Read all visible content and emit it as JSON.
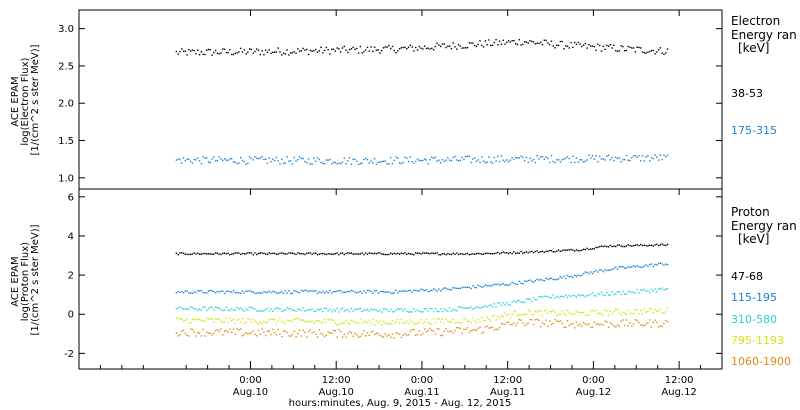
{
  "x_axis": {
    "title": "hours:minutes, Aug.  9, 2015 - Aug. 12, 2015",
    "ticks": [
      {
        "hours": 24,
        "time": "0:00",
        "date": "Aug.10"
      },
      {
        "hours": 36,
        "time": "12:00",
        "date": "Aug.10"
      },
      {
        "hours": 48,
        "time": "0:00",
        "date": "Aug.11"
      },
      {
        "hours": 60,
        "time": "12:00",
        "date": "Aug.11"
      },
      {
        "hours": 72,
        "time": "0:00",
        "date": "Aug.12"
      },
      {
        "hours": 84,
        "time": "12:00",
        "date": "Aug.12"
      }
    ]
  },
  "chart_data": [
    {
      "type": "scatter",
      "id": "electron",
      "ylabel_lines": [
        "ACE EPAM",
        "log(Electron Flux)",
        "[1/(cm^2 s ster MeV)]"
      ],
      "ylim": [
        0.85,
        3.25
      ],
      "yticks": [
        {
          "v": 1.0,
          "label": "1.0"
        },
        {
          "v": 1.5,
          "label": "1.5"
        },
        {
          "v": 2.0,
          "label": "2.0"
        },
        {
          "v": 2.5,
          "label": "2.5"
        },
        {
          "v": 3.0,
          "label": "3.0"
        }
      ],
      "legend_title": [
        "Electron",
        "Energy ran",
        "[keV]"
      ],
      "series": [
        {
          "name": "38-53",
          "color": "#000000",
          "profile": [
            [
              13.5,
              2.68
            ],
            [
              30,
              2.7
            ],
            [
              45,
              2.73
            ],
            [
              62,
              2.83
            ],
            [
              68,
              2.78
            ],
            [
              78,
              2.72
            ],
            [
              82.5,
              2.7
            ]
          ],
          "spread": 0.05
        },
        {
          "name": "175-315",
          "color": "#1e7fd6",
          "profile": [
            [
              13.5,
              1.24
            ],
            [
              40,
              1.23
            ],
            [
              60,
              1.25
            ],
            [
              82.5,
              1.27
            ]
          ],
          "spread": 0.05
        }
      ]
    },
    {
      "type": "scatter",
      "id": "proton",
      "ylabel_lines": [
        "ACE EPAM",
        "log(Proton Flux)",
        "[1/(cm^2 s ster MeV)]"
      ],
      "ylim": [
        -2.8,
        6.4
      ],
      "yticks": [
        {
          "v": -2,
          "label": "-2"
        },
        {
          "v": 0,
          "label": "0"
        },
        {
          "v": 2,
          "label": "2"
        },
        {
          "v": 4,
          "label": "4"
        },
        {
          "v": 6,
          "label": "6"
        }
      ],
      "legend_title": [
        "Proton",
        "Energy ran",
        "[keV]"
      ],
      "series": [
        {
          "name": "47-68",
          "color": "#000000",
          "profile": [
            [
              13.5,
              3.1
            ],
            [
              56,
              3.1
            ],
            [
              64,
              3.2
            ],
            [
              70,
              3.3
            ],
            [
              74,
              3.5
            ],
            [
              82.5,
              3.55
            ]
          ],
          "spread": 0.05
        },
        {
          "name": "115-195",
          "color": "#1e7fd6",
          "profile": [
            [
              13.5,
              1.15
            ],
            [
              44,
              1.15
            ],
            [
              52,
              1.3
            ],
            [
              60,
              1.55
            ],
            [
              68,
              1.9
            ],
            [
              74,
              2.3
            ],
            [
              82.5,
              2.6
            ]
          ],
          "spread": 0.08
        },
        {
          "name": "310-580",
          "color": "#22d3d3",
          "profile": [
            [
              13.5,
              0.3
            ],
            [
              44,
              0.2
            ],
            [
              52,
              0.25
            ],
            [
              60,
              0.55
            ],
            [
              66,
              0.9
            ],
            [
              74,
              1.05
            ],
            [
              82.5,
              1.3
            ]
          ],
          "spread": 0.1
        },
        {
          "name": "795-1193",
          "color": "#d4e316",
          "profile": [
            [
              13.5,
              -0.3
            ],
            [
              44,
              -0.4
            ],
            [
              56,
              -0.3
            ],
            [
              62,
              0.1
            ],
            [
              70,
              0.05
            ],
            [
              82.5,
              0.2
            ]
          ],
          "spread": 0.15
        },
        {
          "name": "1060-1900",
          "color": "#e08a14",
          "profile": [
            [
              13.5,
              -0.9
            ],
            [
              44,
              -1.0
            ],
            [
              56,
              -0.8
            ],
            [
              62,
              -0.4
            ],
            [
              70,
              -0.5
            ],
            [
              82.5,
              -0.45
            ]
          ],
          "spread": 0.2
        }
      ]
    }
  ]
}
